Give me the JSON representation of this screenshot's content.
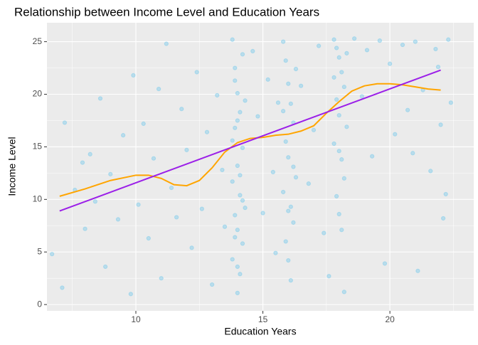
{
  "chart_data": {
    "type": "scatter",
    "title": "Relationship between Income Level and Education Years",
    "x_label": "Education Years",
    "y_label": "Income Level",
    "xlim": [
      6.5,
      23.3
    ],
    "ylim": [
      -0.6,
      26.8
    ],
    "xticks": [
      10,
      15,
      20
    ],
    "yticks": [
      0,
      5,
      10,
      15,
      20,
      25
    ],
    "grid": true,
    "point_color": "#87CEEB",
    "x": [
      6.7,
      7.1,
      7.2,
      7.6,
      7.9,
      8.0,
      8.2,
      8.4,
      8.6,
      8.8,
      9.0,
      9.3,
      9.5,
      9.8,
      9.9,
      10.1,
      10.3,
      10.5,
      10.7,
      10.9,
      11.0,
      11.2,
      11.4,
      11.6,
      11.8,
      12.0,
      12.2,
      12.4,
      12.6,
      12.8,
      13.0,
      13.2,
      13.4,
      13.5,
      13.8,
      13.9,
      14.0,
      14.1,
      13.9,
      14.2,
      14.0,
      13.8,
      14.1,
      14.3,
      13.9,
      14.0,
      14.2,
      13.8,
      14.1,
      14.0,
      14.2,
      13.9,
      14.3,
      14.0,
      13.8,
      14.1,
      14.2,
      13.9,
      14.0,
      14.6,
      14.8,
      15.0,
      15.2,
      15.4,
      15.5,
      15.6,
      15.8,
      15.9,
      16.0,
      16.1,
      16.2,
      15.9,
      16.0,
      16.3,
      15.8,
      16.1,
      16.2,
      15.9,
      16.0,
      16.1,
      16.3,
      15.8,
      16.2,
      16.0,
      16.5,
      16.8,
      17.0,
      17.2,
      17.4,
      17.6,
      17.8,
      17.9,
      18.0,
      18.1,
      18.2,
      17.9,
      18.0,
      18.3,
      17.8,
      18.1,
      18.2,
      17.9,
      18.0,
      18.1,
      18.2,
      17.8,
      18.3,
      18.0,
      18.6,
      18.9,
      19.1,
      19.3,
      19.6,
      19.8,
      20.0,
      20.2,
      20.5,
      20.7,
      21.0,
      21.1,
      21.3,
      21.6,
      21.8,
      22.0,
      22.1,
      22.3,
      22.4,
      22.2,
      21.9,
      20.9
    ],
    "y": [
      4.8,
      1.6,
      17.3,
      10.9,
      13.5,
      7.2,
      14.3,
      9.8,
      19.6,
      3.6,
      12.4,
      8.1,
      16.1,
      1.0,
      21.8,
      9.5,
      17.2,
      6.3,
      13.9,
      20.5,
      2.5,
      24.8,
      11.1,
      8.3,
      18.6,
      14.7,
      5.4,
      22.1,
      9.1,
      16.4,
      1.9,
      19.9,
      12.8,
      7.4,
      25.2,
      22.5,
      20.1,
      18.3,
      16.8,
      14.9,
      13.2,
      11.7,
      10.4,
      9.2,
      8.5,
      7.1,
      5.8,
      4.3,
      2.9,
      1.1,
      23.8,
      21.3,
      19.4,
      17.5,
      15.6,
      12.3,
      9.9,
      6.4,
      3.6,
      24.1,
      17.9,
      8.7,
      21.4,
      12.6,
      4.9,
      19.2,
      25.0,
      23.2,
      21.0,
      19.1,
      17.3,
      15.5,
      14.0,
      12.1,
      10.7,
      9.3,
      7.8,
      6.0,
      4.2,
      2.3,
      22.4,
      18.4,
      13.1,
      8.9,
      20.8,
      11.5,
      16.6,
      24.6,
      6.8,
      2.7,
      25.2,
      24.4,
      23.5,
      22.1,
      20.7,
      19.5,
      18.0,
      16.9,
      15.3,
      13.8,
      12.0,
      10.3,
      8.6,
      7.1,
      1.2,
      21.6,
      23.9,
      14.6,
      25.3,
      19.8,
      24.2,
      14.1,
      25.1,
      3.9,
      22.9,
      16.2,
      24.7,
      18.5,
      25.0,
      3.2,
      20.4,
      12.7,
      24.3,
      17.1,
      8.2,
      25.2,
      19.2,
      10.5,
      22.6,
      14.4
    ],
    "lines": [
      {
        "color": "orange",
        "x": [
          7,
          8,
          9,
          10,
          10.5,
          11,
          11.5,
          12,
          12.5,
          13,
          13.5,
          14,
          14.5,
          15,
          15.5,
          16,
          16.5,
          17,
          17.5,
          18,
          18.5,
          19,
          19.5,
          20,
          20.5,
          21,
          21.5,
          22
        ],
        "y": [
          10.3,
          11,
          11.8,
          12.3,
          12.3,
          12,
          11.4,
          11.3,
          11.8,
          13,
          14.5,
          15.4,
          15.8,
          15.9,
          16.1,
          16.2,
          16.5,
          17,
          18.2,
          19.3,
          20.3,
          20.8,
          21,
          21,
          20.9,
          20.7,
          20.5,
          20.4
        ]
      },
      {
        "color": "#9B1FE8",
        "x": [
          7,
          22
        ],
        "y": [
          8.9,
          22.3
        ]
      }
    ]
  }
}
